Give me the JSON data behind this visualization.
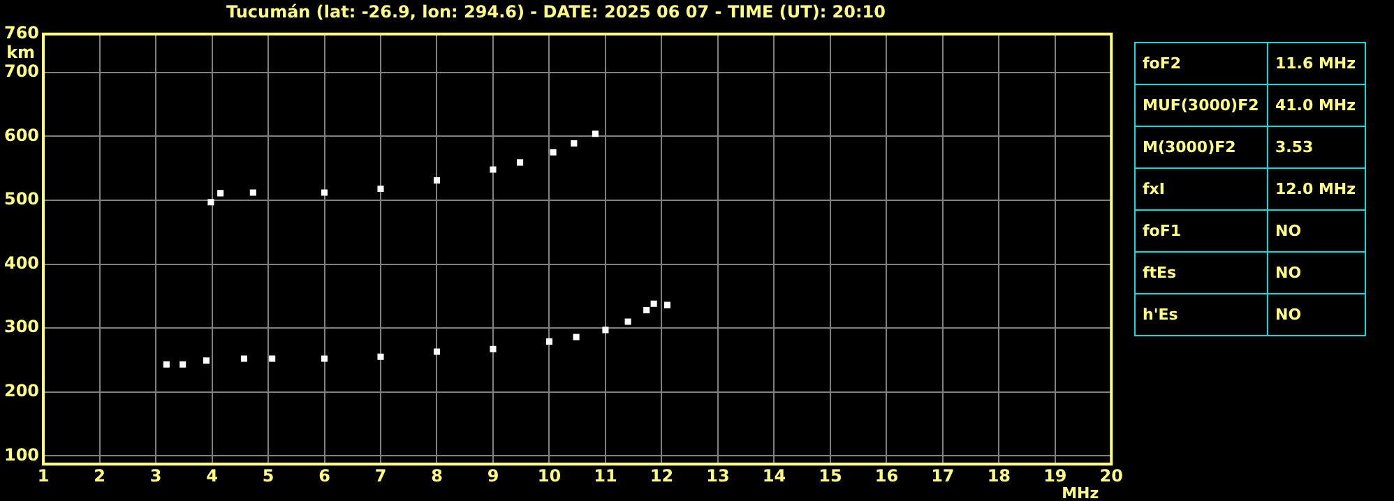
{
  "chart_data": [
    {
      "type": "scatter",
      "title": "Tucumán (lat: -26.9, lon: 294.6) - DATE: 2025 06 07 - TIME (UT): 20:10",
      "xlabel": "MHz",
      "ylabel": "km",
      "series": [
        {
          "color": "#ffffff",
          "x": [
            3.19,
            3.48,
            3.9,
            4.57,
            5.07,
            6,
            7,
            8,
            9,
            10,
            10.48,
            11,
            11.4,
            11.73,
            11.86,
            12.1
          ],
          "values": [
            243,
            243,
            249,
            252,
            252,
            252,
            255,
            263,
            267,
            279,
            286,
            297,
            310,
            328,
            338,
            336
          ]
        },
        {
          "color": "#ffffff",
          "x": [
            3.98,
            4.15,
            4.73,
            6,
            7,
            8,
            9,
            9.48,
            10.07,
            10.44,
            10.82
          ],
          "values": [
            497,
            511,
            512,
            512,
            518,
            531,
            548,
            559,
            575,
            589,
            604
          ]
        }
      ],
      "xlim": [
        1,
        20
      ],
      "ylim": [
        87,
        760
      ],
      "xticks": [
        1,
        2,
        3,
        4,
        5,
        6,
        7,
        8,
        9,
        10,
        11,
        12,
        13,
        14,
        15,
        16,
        17,
        18,
        19,
        20
      ],
      "yticks": [
        100,
        200,
        300,
        400,
        500,
        600,
        700,
        760
      ],
      "grid": true,
      "legend": false,
      "marker": "square"
    },
    {
      "type": "other",
      "annotations": [
        "foF2",
        "11.6 MHz",
        "MUF(3000)F2",
        "41.0 MHz",
        "M(3000)F2",
        "3.53",
        "fxI",
        "12.0 MHz",
        "foF1",
        "NO",
        "ftEs",
        "NO",
        "h'Es",
        "NO"
      ]
    }
  ]
}
